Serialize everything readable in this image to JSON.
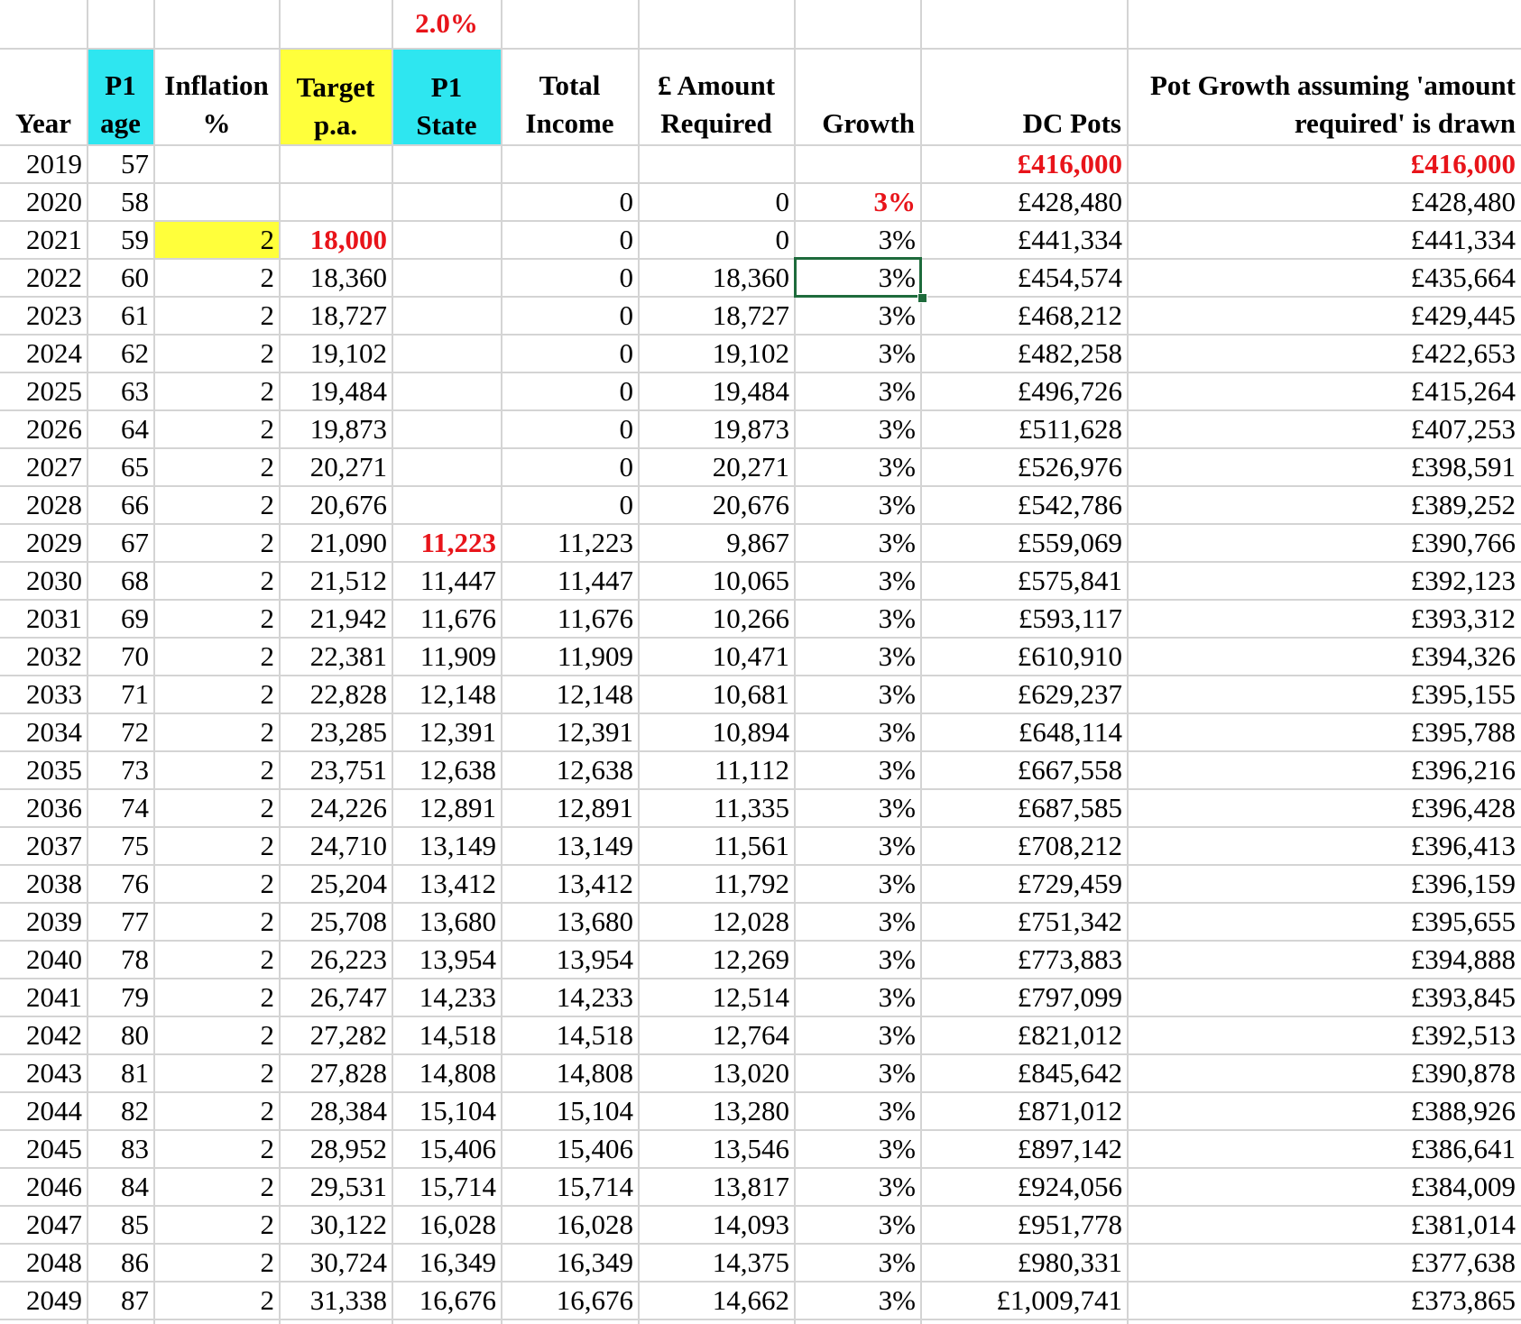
{
  "colors": {
    "cyan_fill": "#2ee6f0",
    "yellow_fill": "#ffff3b",
    "red_text": "#e8141a",
    "grid": "#d4d4d4",
    "selection": "#1e6b3c"
  },
  "headers": {
    "year": "Year",
    "p1_age": [
      "P1",
      "age"
    ],
    "inflation": [
      "Inflation",
      "%"
    ],
    "target": [
      "Target",
      "p.a."
    ],
    "p1_state": [
      "P1",
      "State"
    ],
    "p1_state_rate": "2.0%",
    "total_income": [
      "Total",
      "Income"
    ],
    "amount_required": [
      "£ Amount",
      "Required"
    ],
    "growth": "Growth",
    "dc_pots": "DC Pots",
    "pot_growth": [
      "Pot Growth assuming 'amount",
      "required' is drawn"
    ]
  },
  "rows": [
    [
      "2019",
      "57",
      "",
      "",
      "",
      "",
      "",
      "",
      "£416,000",
      "£416,000"
    ],
    [
      "2020",
      "58",
      "",
      "",
      "",
      "0",
      "0",
      "3%",
      "£428,480",
      "£428,480"
    ],
    [
      "2021",
      "59",
      "2",
      "18,000",
      "",
      "0",
      "0",
      "3%",
      "£441,334",
      "£441,334"
    ],
    [
      "2022",
      "60",
      "2",
      "18,360",
      "",
      "0",
      "18,360",
      "3%",
      "£454,574",
      "£435,664"
    ],
    [
      "2023",
      "61",
      "2",
      "18,727",
      "",
      "0",
      "18,727",
      "3%",
      "£468,212",
      "£429,445"
    ],
    [
      "2024",
      "62",
      "2",
      "19,102",
      "",
      "0",
      "19,102",
      "3%",
      "£482,258",
      "£422,653"
    ],
    [
      "2025",
      "63",
      "2",
      "19,484",
      "",
      "0",
      "19,484",
      "3%",
      "£496,726",
      "£415,264"
    ],
    [
      "2026",
      "64",
      "2",
      "19,873",
      "",
      "0",
      "19,873",
      "3%",
      "£511,628",
      "£407,253"
    ],
    [
      "2027",
      "65",
      "2",
      "20,271",
      "",
      "0",
      "20,271",
      "3%",
      "£526,976",
      "£398,591"
    ],
    [
      "2028",
      "66",
      "2",
      "20,676",
      "",
      "0",
      "20,676",
      "3%",
      "£542,786",
      "£389,252"
    ],
    [
      "2029",
      "67",
      "2",
      "21,090",
      "11,223",
      "11,223",
      "9,867",
      "3%",
      "£559,069",
      "£390,766"
    ],
    [
      "2030",
      "68",
      "2",
      "21,512",
      "11,447",
      "11,447",
      "10,065",
      "3%",
      "£575,841",
      "£392,123"
    ],
    [
      "2031",
      "69",
      "2",
      "21,942",
      "11,676",
      "11,676",
      "10,266",
      "3%",
      "£593,117",
      "£393,312"
    ],
    [
      "2032",
      "70",
      "2",
      "22,381",
      "11,909",
      "11,909",
      "10,471",
      "3%",
      "£610,910",
      "£394,326"
    ],
    [
      "2033",
      "71",
      "2",
      "22,828",
      "12,148",
      "12,148",
      "10,681",
      "3%",
      "£629,237",
      "£395,155"
    ],
    [
      "2034",
      "72",
      "2",
      "23,285",
      "12,391",
      "12,391",
      "10,894",
      "3%",
      "£648,114",
      "£395,788"
    ],
    [
      "2035",
      "73",
      "2",
      "23,751",
      "12,638",
      "12,638",
      "11,112",
      "3%",
      "£667,558",
      "£396,216"
    ],
    [
      "2036",
      "74",
      "2",
      "24,226",
      "12,891",
      "12,891",
      "11,335",
      "3%",
      "£687,585",
      "£396,428"
    ],
    [
      "2037",
      "75",
      "2",
      "24,710",
      "13,149",
      "13,149",
      "11,561",
      "3%",
      "£708,212",
      "£396,413"
    ],
    [
      "2038",
      "76",
      "2",
      "25,204",
      "13,412",
      "13,412",
      "11,792",
      "3%",
      "£729,459",
      "£396,159"
    ],
    [
      "2039",
      "77",
      "2",
      "25,708",
      "13,680",
      "13,680",
      "12,028",
      "3%",
      "£751,342",
      "£395,655"
    ],
    [
      "2040",
      "78",
      "2",
      "26,223",
      "13,954",
      "13,954",
      "12,269",
      "3%",
      "£773,883",
      "£394,888"
    ],
    [
      "2041",
      "79",
      "2",
      "26,747",
      "14,233",
      "14,233",
      "12,514",
      "3%",
      "£797,099",
      "£393,845"
    ],
    [
      "2042",
      "80",
      "2",
      "27,282",
      "14,518",
      "14,518",
      "12,764",
      "3%",
      "£821,012",
      "£392,513"
    ],
    [
      "2043",
      "81",
      "2",
      "27,828",
      "14,808",
      "14,808",
      "13,020",
      "3%",
      "£845,642",
      "£390,878"
    ],
    [
      "2044",
      "82",
      "2",
      "28,384",
      "15,104",
      "15,104",
      "13,280",
      "3%",
      "£871,012",
      "£388,926"
    ],
    [
      "2045",
      "83",
      "2",
      "28,952",
      "15,406",
      "15,406",
      "13,546",
      "3%",
      "£897,142",
      "£386,641"
    ],
    [
      "2046",
      "84",
      "2",
      "29,531",
      "15,714",
      "15,714",
      "13,817",
      "3%",
      "£924,056",
      "£384,009"
    ],
    [
      "2047",
      "85",
      "2",
      "30,122",
      "16,028",
      "16,028",
      "14,093",
      "3%",
      "£951,778",
      "£381,014"
    ],
    [
      "2048",
      "86",
      "2",
      "30,724",
      "16,349",
      "16,349",
      "14,375",
      "3%",
      "£980,331",
      "£377,638"
    ],
    [
      "2049",
      "87",
      "2",
      "31,338",
      "16,676",
      "16,676",
      "14,662",
      "3%",
      "£1,009,741",
      "£373,865"
    ]
  ],
  "highlights": {
    "red_bold_cells": [
      "0-8",
      "0-9",
      "1-7",
      "2-3",
      "10-4"
    ],
    "yellow_cells": [
      "2-2"
    ],
    "selected_cell": "3-7"
  }
}
